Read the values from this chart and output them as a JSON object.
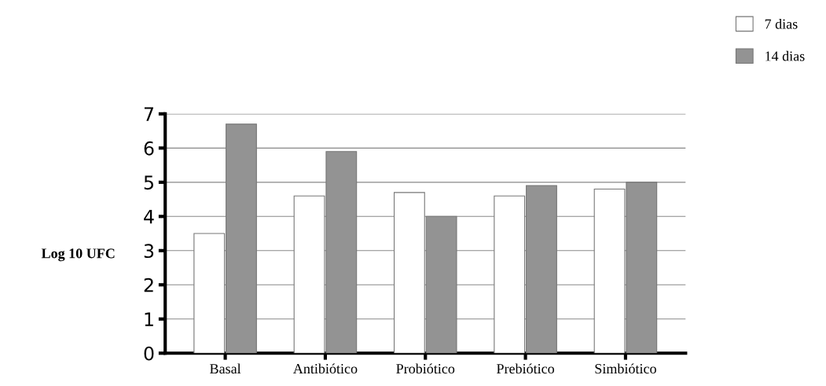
{
  "chart_data": {
    "type": "bar",
    "ylabel": "Log 10 UFC",
    "categories": [
      "Basal",
      "Antibiótico",
      "Probiótico",
      "Prebiótico",
      "Simbiótico"
    ],
    "series": [
      {
        "name": "7 dias",
        "color": "#ffffff",
        "values": [
          3.5,
          4.6,
          4.7,
          4.6,
          4.8
        ]
      },
      {
        "name": "14 dias",
        "color": "#939393",
        "values": [
          6.7,
          5.9,
          4.0,
          4.9,
          5.0
        ]
      }
    ],
    "ylim": [
      0,
      7
    ],
    "yticks": [
      0,
      1,
      2,
      3,
      4,
      5,
      6,
      7
    ],
    "grid": "y",
    "legend": "top right"
  }
}
